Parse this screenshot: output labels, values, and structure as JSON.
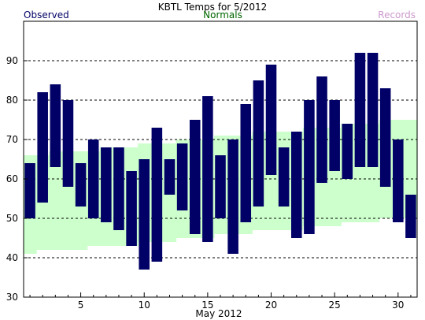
{
  "chart_data": {
    "type": "bar",
    "title": "KBTL Temps for 5/2012",
    "legend": {
      "observed": "Observed",
      "normals": "Normals",
      "records": "Records"
    },
    "xlabel": "May 2012",
    "ylabel": "",
    "xlim": [
      0.5,
      31.5
    ],
    "ylim": [
      30,
      100
    ],
    "x_ticks": [
      5,
      10,
      15,
      20,
      25,
      30
    ],
    "y_ticks": [
      30,
      40,
      50,
      60,
      70,
      80,
      90
    ],
    "grid": true,
    "colors": {
      "observed": "#000066",
      "normals": "#ccffcc",
      "normals_text": "#006600",
      "records_text": "#cc99cc",
      "grid": "#000000"
    },
    "days": [
      1,
      2,
      3,
      4,
      5,
      6,
      7,
      8,
      9,
      10,
      11,
      12,
      13,
      14,
      15,
      16,
      17,
      18,
      19,
      20,
      21,
      22,
      23,
      24,
      25,
      26,
      27,
      28,
      29,
      30,
      31
    ],
    "observed_high": [
      64,
      82,
      84,
      80,
      64,
      70,
      68,
      68,
      62,
      65,
      73,
      65,
      69,
      75,
      81,
      66,
      70,
      79,
      85,
      89,
      68,
      72,
      80,
      86,
      80,
      74,
      92,
      92,
      83,
      70,
      56
    ],
    "observed_low": [
      50,
      54,
      63,
      58,
      53,
      50,
      49,
      47,
      43,
      37,
      39,
      56,
      52,
      46,
      44,
      50,
      41,
      49,
      53,
      61,
      53,
      45,
      46,
      59,
      62,
      60,
      63,
      63,
      58,
      49,
      45
    ],
    "normal_high": [
      66,
      66,
      67,
      67,
      67,
      67,
      68,
      68,
      68,
      69,
      69,
      69,
      70,
      70,
      70,
      71,
      71,
      71,
      72,
      72,
      72,
      72,
      73,
      73,
      73,
      74,
      74,
      74,
      75,
      75,
      75
    ],
    "normal_low": [
      41,
      42,
      42,
      42,
      42,
      43,
      43,
      43,
      43,
      44,
      44,
      44,
      45,
      45,
      45,
      46,
      46,
      46,
      47,
      47,
      47,
      47,
      48,
      48,
      48,
      49,
      49,
      49,
      50,
      50,
      50
    ]
  }
}
